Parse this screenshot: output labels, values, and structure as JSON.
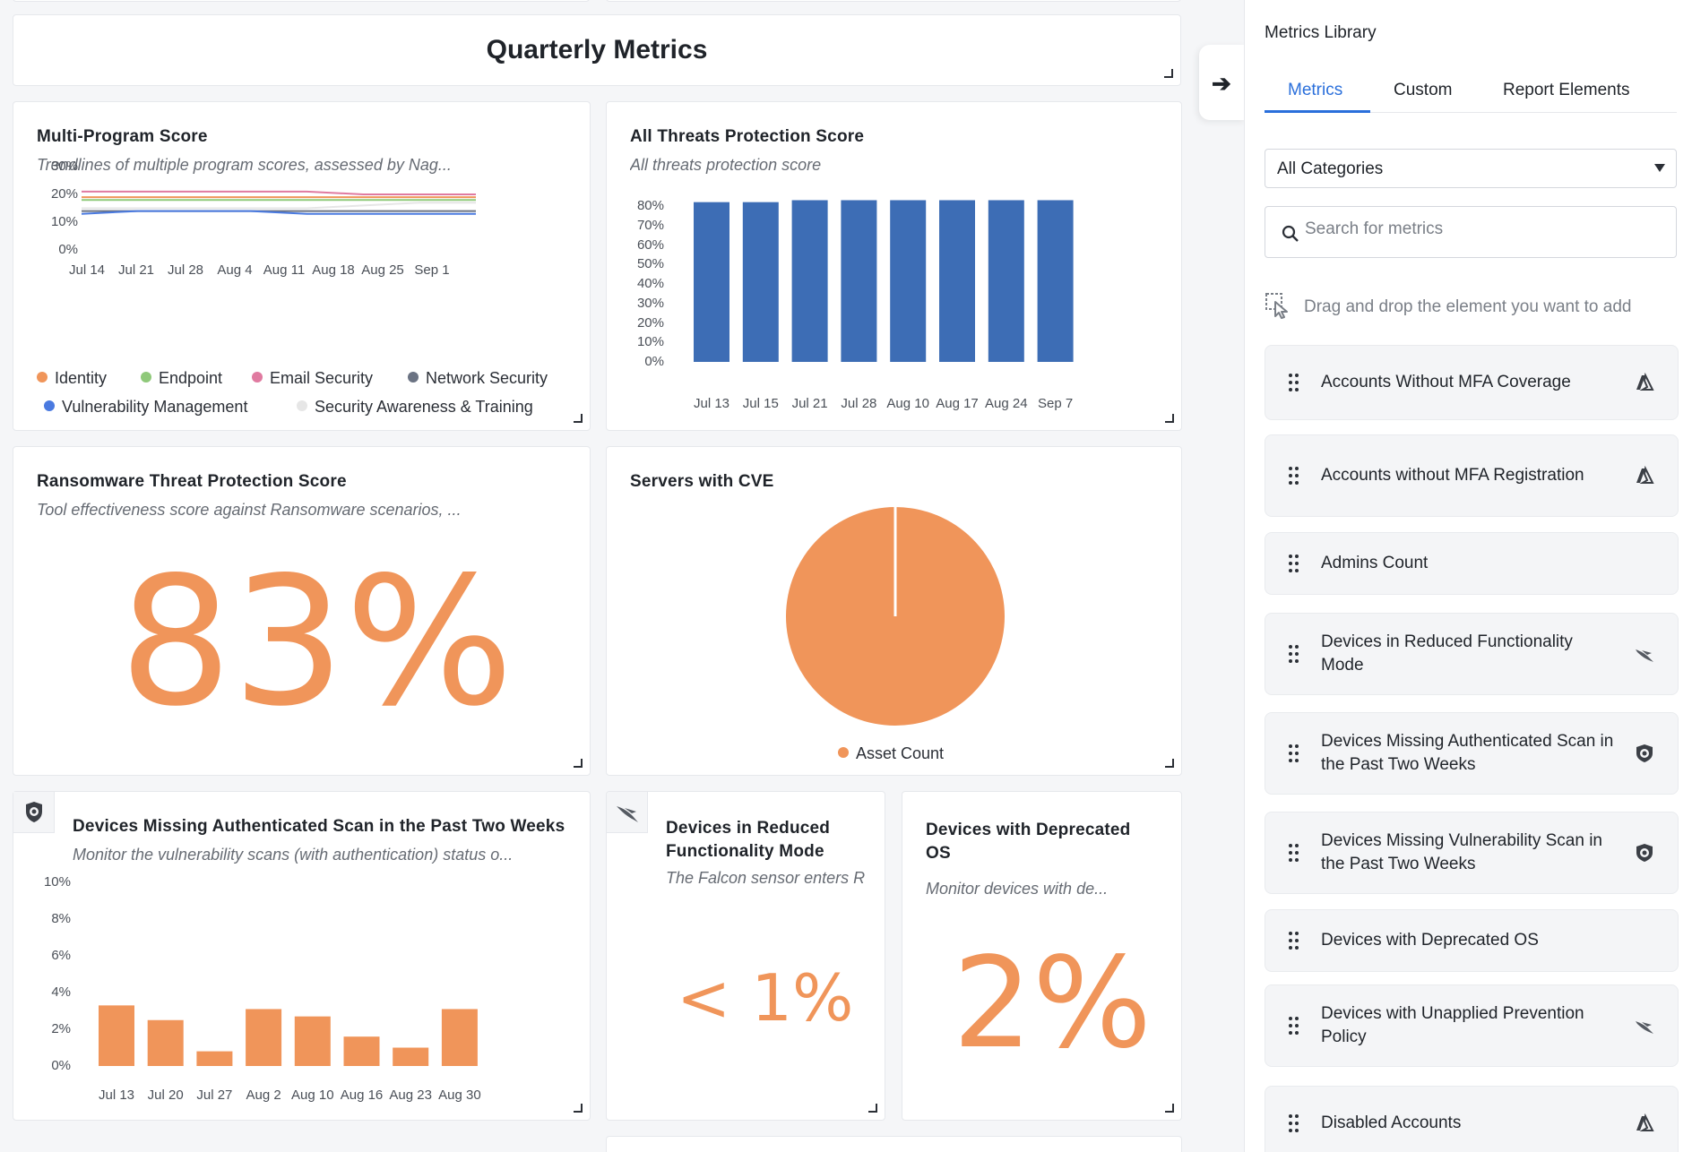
{
  "page": {
    "title": "Quarterly Metrics"
  },
  "multi_program": {
    "title": "Multi-Program Score",
    "subtitle": "Trendlines of multiple program scores, assessed by Nag...",
    "y_ticks": [
      "30%",
      "20%",
      "10%",
      "0%"
    ],
    "x_ticks": [
      "Jul 14",
      "Jul 21",
      "Jul 28",
      "Aug 4",
      "Aug 11",
      "Aug 18",
      "Aug 25",
      "Sep 1"
    ],
    "legend": [
      {
        "label": "Identity",
        "color": "#f0955a"
      },
      {
        "label": "Endpoint",
        "color": "#8fc97a"
      },
      {
        "label": "Email Security",
        "color": "#e07aa0"
      },
      {
        "label": "Network Security",
        "color": "#6b7383"
      },
      {
        "label": "Vulnerability Management",
        "color": "#4a7ae0"
      },
      {
        "label": "Security Awareness & Training",
        "color": "#e6e6e6"
      }
    ]
  },
  "all_threats": {
    "title": "All Threats Protection Score",
    "subtitle": "All threats protection score",
    "y_ticks": [
      "80%",
      "70%",
      "60%",
      "50%",
      "40%",
      "30%",
      "20%",
      "10%",
      "0%"
    ]
  },
  "ransomware": {
    "title": "Ransomware Threat Protection Score",
    "subtitle": "Tool effectiveness score against Ransomware scenarios, ...",
    "value": "83%"
  },
  "servers_cve": {
    "title": "Servers with CVE",
    "legend_label": "Asset Count",
    "color": "#f0955a"
  },
  "missing_scan": {
    "title": "Devices Missing Authenticated Scan in the Past Two Weeks",
    "subtitle": "Monitor the vulnerability scans (with authentication) status o...",
    "y_ticks": [
      "10%",
      "8%",
      "6%",
      "4%",
      "2%",
      "0%"
    ],
    "icon": "shield-icon"
  },
  "reduced_func": {
    "title": "Devices in Reduced Functionality Mode",
    "subtitle": "The Falcon sensor enters R",
    "value": "< 1%",
    "icon": "falcon-icon"
  },
  "deprecated_os": {
    "title": "Devices with Deprecated OS",
    "subtitle": "Monitor devices with de...",
    "value": "2%"
  },
  "chart_data": [
    {
      "type": "line",
      "title": "Multi-Program Score",
      "x": [
        "Jul 14",
        "Jul 21",
        "Jul 28",
        "Aug 4",
        "Aug 11",
        "Aug 18",
        "Aug 25",
        "Sep 1"
      ],
      "ylim": [
        0,
        30
      ],
      "series": [
        {
          "name": "Identity",
          "values": [
            19,
            19,
            19,
            19,
            19,
            19,
            19,
            19
          ]
        },
        {
          "name": "Endpoint",
          "values": [
            18,
            18,
            18,
            18,
            18,
            18,
            18,
            18
          ]
        },
        {
          "name": "Email Security",
          "values": [
            21,
            21,
            21,
            21,
            21,
            20,
            20,
            20
          ]
        },
        {
          "name": "Network Security",
          "values": [
            14,
            14,
            14,
            14,
            14,
            14,
            14,
            14
          ]
        },
        {
          "name": "Vulnerability Management",
          "values": [
            13,
            14,
            14,
            14,
            13,
            13,
            13,
            13
          ]
        },
        {
          "name": "Security Awareness & Training",
          "values": [
            15,
            15,
            15,
            15,
            15,
            16,
            17,
            17
          ]
        }
      ]
    },
    {
      "type": "bar",
      "title": "All Threats Protection Score",
      "categories": [
        "Jul 13",
        "Jul 15",
        "Jul 21",
        "Jul 28",
        "Aug 10",
        "Aug 17",
        "Aug 24",
        "Sep 7"
      ],
      "values": [
        82,
        82,
        83,
        83,
        83,
        83,
        83,
        83
      ],
      "ylim": [
        0,
        80
      ],
      "color": "#3d6db5"
    },
    {
      "type": "pie",
      "title": "Servers with CVE",
      "categories": [
        "Asset Count"
      ],
      "values": [
        100
      ]
    },
    {
      "type": "bar",
      "title": "Devices Missing Authenticated Scan in the Past Two Weeks",
      "categories": [
        "Jul 13",
        "Jul 20",
        "Jul 27",
        "Aug 2",
        "Aug 10",
        "Aug 16",
        "Aug 23",
        "Aug 30"
      ],
      "values": [
        3.3,
        2.5,
        0.8,
        3.1,
        2.7,
        1.6,
        1.0,
        3.1
      ],
      "ylim": [
        0,
        10
      ],
      "color": "#f0955a"
    }
  ],
  "panel": {
    "title": "Metrics Library",
    "tabs": [
      "Metrics",
      "Custom",
      "Report Elements"
    ],
    "category_select": "All Categories",
    "search_placeholder": "Search for metrics",
    "hint": "Drag and drop the element you want to add",
    "items": [
      {
        "label": "Accounts Without MFA Coverage",
        "logo": "azure-logo-icon"
      },
      {
        "label": "Accounts without MFA Registration",
        "logo": "azure-logo-icon"
      },
      {
        "label": "Admins Count",
        "logo": ""
      },
      {
        "label": "Devices in Reduced Functionality Mode",
        "logo": "falcon-logo-icon"
      },
      {
        "label": "Devices Missing Authenticated Scan in the Past Two Weeks",
        "logo": "shield-logo-icon"
      },
      {
        "label": "Devices Missing Vulnerability Scan in the Past Two Weeks",
        "logo": "shield-logo-icon"
      },
      {
        "label": "Devices with Deprecated OS",
        "logo": ""
      },
      {
        "label": "Devices with Unapplied Prevention Policy",
        "logo": "falcon-logo-icon"
      },
      {
        "label": "Disabled Accounts",
        "logo": "azure-logo-icon"
      }
    ]
  }
}
